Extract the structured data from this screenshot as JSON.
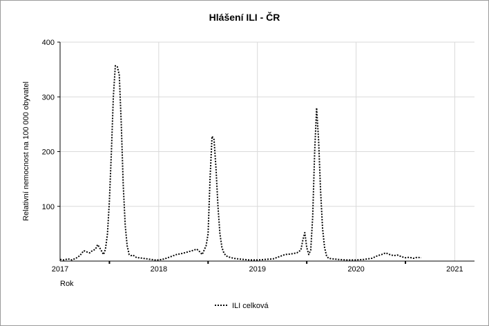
{
  "chart_data": {
    "type": "line",
    "title": "Hlášení ILI - ČR",
    "xlabel": "Rok",
    "ylabel": "Relativní nemocnost na 100 000 obyvatel",
    "ylim": [
      0,
      400
    ],
    "yticks": [
      100,
      200,
      300,
      400
    ],
    "xlim": [
      2017.0,
      2021.2
    ],
    "xticks": [
      {
        "value": 2017,
        "label": "2017"
      },
      {
        "value": 2018,
        "label": "2018"
      },
      {
        "value": 2019,
        "label": "2019"
      },
      {
        "value": 2020,
        "label": "2020"
      },
      {
        "value": 2021,
        "label": "2021"
      }
    ],
    "grid": true,
    "legend_position": "bottom-center",
    "series": [
      {
        "name": "ILI celková",
        "style": "dotted",
        "x": [
          2017.0,
          2017.04,
          2017.08,
          2017.12,
          2017.16,
          2017.2,
          2017.24,
          2017.28,
          2017.3,
          2017.32,
          2017.36,
          2017.38,
          2017.4,
          2017.44,
          2017.46,
          2017.48,
          2017.5,
          2017.52,
          2017.54,
          2017.56,
          2017.58,
          2017.6,
          2017.62,
          2017.64,
          2017.66,
          2017.68,
          2017.7,
          2017.72,
          2017.74,
          2017.76,
          2017.78,
          2017.8,
          2017.84,
          2017.88,
          2017.92,
          2017.96,
          2018.0,
          2018.06,
          2018.12,
          2018.18,
          2018.24,
          2018.3,
          2018.36,
          2018.38,
          2018.4,
          2018.44,
          2018.48,
          2018.5,
          2018.52,
          2018.54,
          2018.56,
          2018.58,
          2018.6,
          2018.62,
          2018.64,
          2018.66,
          2018.68,
          2018.7,
          2018.72,
          2018.76,
          2018.8,
          2018.86,
          2018.92,
          2019.0,
          2019.08,
          2019.16,
          2019.22,
          2019.28,
          2019.34,
          2019.4,
          2019.44,
          2019.46,
          2019.48,
          2019.5,
          2019.52,
          2019.54,
          2019.56,
          2019.58,
          2019.6,
          2019.62,
          2019.64,
          2019.66,
          2019.68,
          2019.7,
          2019.72,
          2019.76,
          2019.82,
          2019.9,
          2020.0,
          2020.08,
          2020.16,
          2020.22,
          2020.26,
          2020.3,
          2020.34,
          2020.38,
          2020.42,
          2020.46,
          2020.5,
          2020.54,
          2020.58,
          2020.62,
          2020.66
        ],
        "y": [
          3,
          2,
          4,
          2,
          5,
          10,
          19,
          16,
          15,
          18,
          22,
          30,
          25,
          12,
          22,
          50,
          110,
          200,
          300,
          357,
          355,
          340,
          250,
          140,
          65,
          28,
          12,
          10,
          11,
          8,
          6,
          6,
          5,
          4,
          3,
          2,
          2,
          4,
          8,
          12,
          14,
          17,
          20,
          22,
          20,
          12,
          28,
          50,
          150,
          228,
          222,
          170,
          100,
          50,
          25,
          15,
          10,
          8,
          7,
          5,
          4,
          3,
          2,
          2,
          3,
          4,
          8,
          12,
          13,
          15,
          20,
          38,
          52,
          25,
          12,
          20,
          80,
          200,
          280,
          220,
          130,
          60,
          25,
          10,
          5,
          4,
          3,
          2,
          2,
          3,
          5,
          10,
          12,
          15,
          12,
          10,
          11,
          8,
          6,
          7,
          5,
          7,
          6
        ]
      }
    ]
  }
}
